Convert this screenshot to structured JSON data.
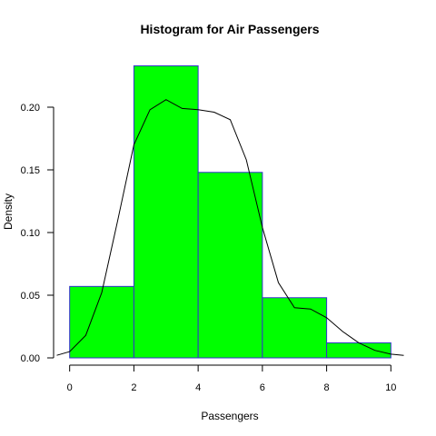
{
  "chart_data": {
    "type": "bar",
    "title": "Histogram for Air Passengers",
    "xlabel": "Passengers",
    "ylabel": "Density",
    "bins": [
      {
        "x0": 0,
        "x1": 2,
        "density": 0.057
      },
      {
        "x0": 2,
        "x1": 4,
        "density": 0.233
      },
      {
        "x0": 4,
        "x1": 6,
        "density": 0.148
      },
      {
        "x0": 6,
        "x1": 8,
        "density": 0.048
      },
      {
        "x0": 8,
        "x1": 10,
        "density": 0.012
      }
    ],
    "xlim": [
      -0.5,
      10.5
    ],
    "ylim": [
      0,
      0.24
    ],
    "x_ticks": [
      0,
      2,
      4,
      6,
      8,
      10
    ],
    "x_tick_labels": [
      "0",
      "2",
      "4",
      "6",
      "8",
      "10"
    ],
    "y_ticks": [
      0,
      0.05,
      0.1,
      0.15,
      0.2
    ],
    "y_tick_labels": [
      "0.00",
      "0.05",
      "0.10",
      "0.15",
      "0.20"
    ],
    "bar_fill": "#00ff00",
    "bar_border": "#3333cc",
    "density_color": "#000000",
    "density_curve": {
      "x": [
        -0.4,
        0,
        0.5,
        1,
        1.5,
        2,
        2.5,
        3,
        3.5,
        4,
        4.5,
        5,
        5.5,
        6,
        6.5,
        7,
        7.5,
        8,
        8.5,
        9,
        9.5,
        10,
        10.4
      ],
      "y": [
        0.002,
        0.005,
        0.018,
        0.052,
        0.11,
        0.17,
        0.198,
        0.206,
        0.199,
        0.198,
        0.196,
        0.19,
        0.158,
        0.104,
        0.06,
        0.04,
        0.039,
        0.032,
        0.021,
        0.012,
        0.006,
        0.003,
        0.002
      ]
    }
  }
}
